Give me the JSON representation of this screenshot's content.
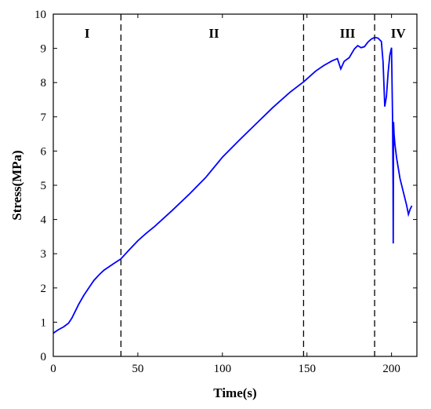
{
  "chart_data": {
    "type": "line",
    "title": "",
    "xlabel": "Time(s)",
    "ylabel": "Stress(MPa)",
    "xlim": [
      0,
      215
    ],
    "ylim": [
      0,
      10
    ],
    "xticks": [
      0,
      50,
      100,
      150,
      200
    ],
    "yticks": [
      0,
      1,
      2,
      3,
      4,
      5,
      6,
      7,
      8,
      9,
      10
    ],
    "grid": false,
    "line_color": "#0000ff",
    "divider_x": [
      40,
      148,
      190
    ],
    "stage_labels": [
      {
        "text": "I",
        "x": 20
      },
      {
        "text": "II",
        "x": 95
      },
      {
        "text": "III",
        "x": 174
      },
      {
        "text": "IV",
        "x": 204
      }
    ],
    "series": [
      {
        "x": [
          0,
          3,
          6,
          9,
          11,
          13,
          15,
          18,
          21,
          24,
          27,
          30,
          33,
          36,
          40,
          45,
          50,
          55,
          60,
          70,
          80,
          90,
          100,
          110,
          120,
          130,
          140,
          148,
          155,
          160,
          165,
          168,
          170,
          172,
          175,
          178,
          180,
          182,
          184,
          186,
          188,
          190,
          192,
          194,
          195,
          196,
          197,
          198,
          199,
          200,
          200.6,
          200.9,
          201,
          201.2,
          201.5,
          202,
          203,
          205,
          207,
          209,
          210,
          211,
          212
        ],
        "values": [
          0.68,
          0.78,
          0.86,
          0.97,
          1.12,
          1.32,
          1.52,
          1.78,
          2.0,
          2.22,
          2.38,
          2.52,
          2.62,
          2.72,
          2.85,
          3.12,
          3.38,
          3.6,
          3.8,
          4.25,
          4.72,
          5.22,
          5.82,
          6.32,
          6.8,
          7.28,
          7.72,
          8.02,
          8.33,
          8.5,
          8.64,
          8.7,
          8.4,
          8.62,
          8.73,
          8.98,
          9.08,
          9.02,
          9.05,
          9.18,
          9.27,
          9.32,
          9.3,
          9.2,
          8.6,
          7.3,
          7.6,
          8.3,
          8.8,
          9.02,
          7.0,
          5.0,
          3.3,
          6.85,
          6.5,
          6.2,
          5.8,
          5.2,
          4.8,
          4.4,
          4.15,
          4.3,
          4.4
        ]
      }
    ]
  }
}
